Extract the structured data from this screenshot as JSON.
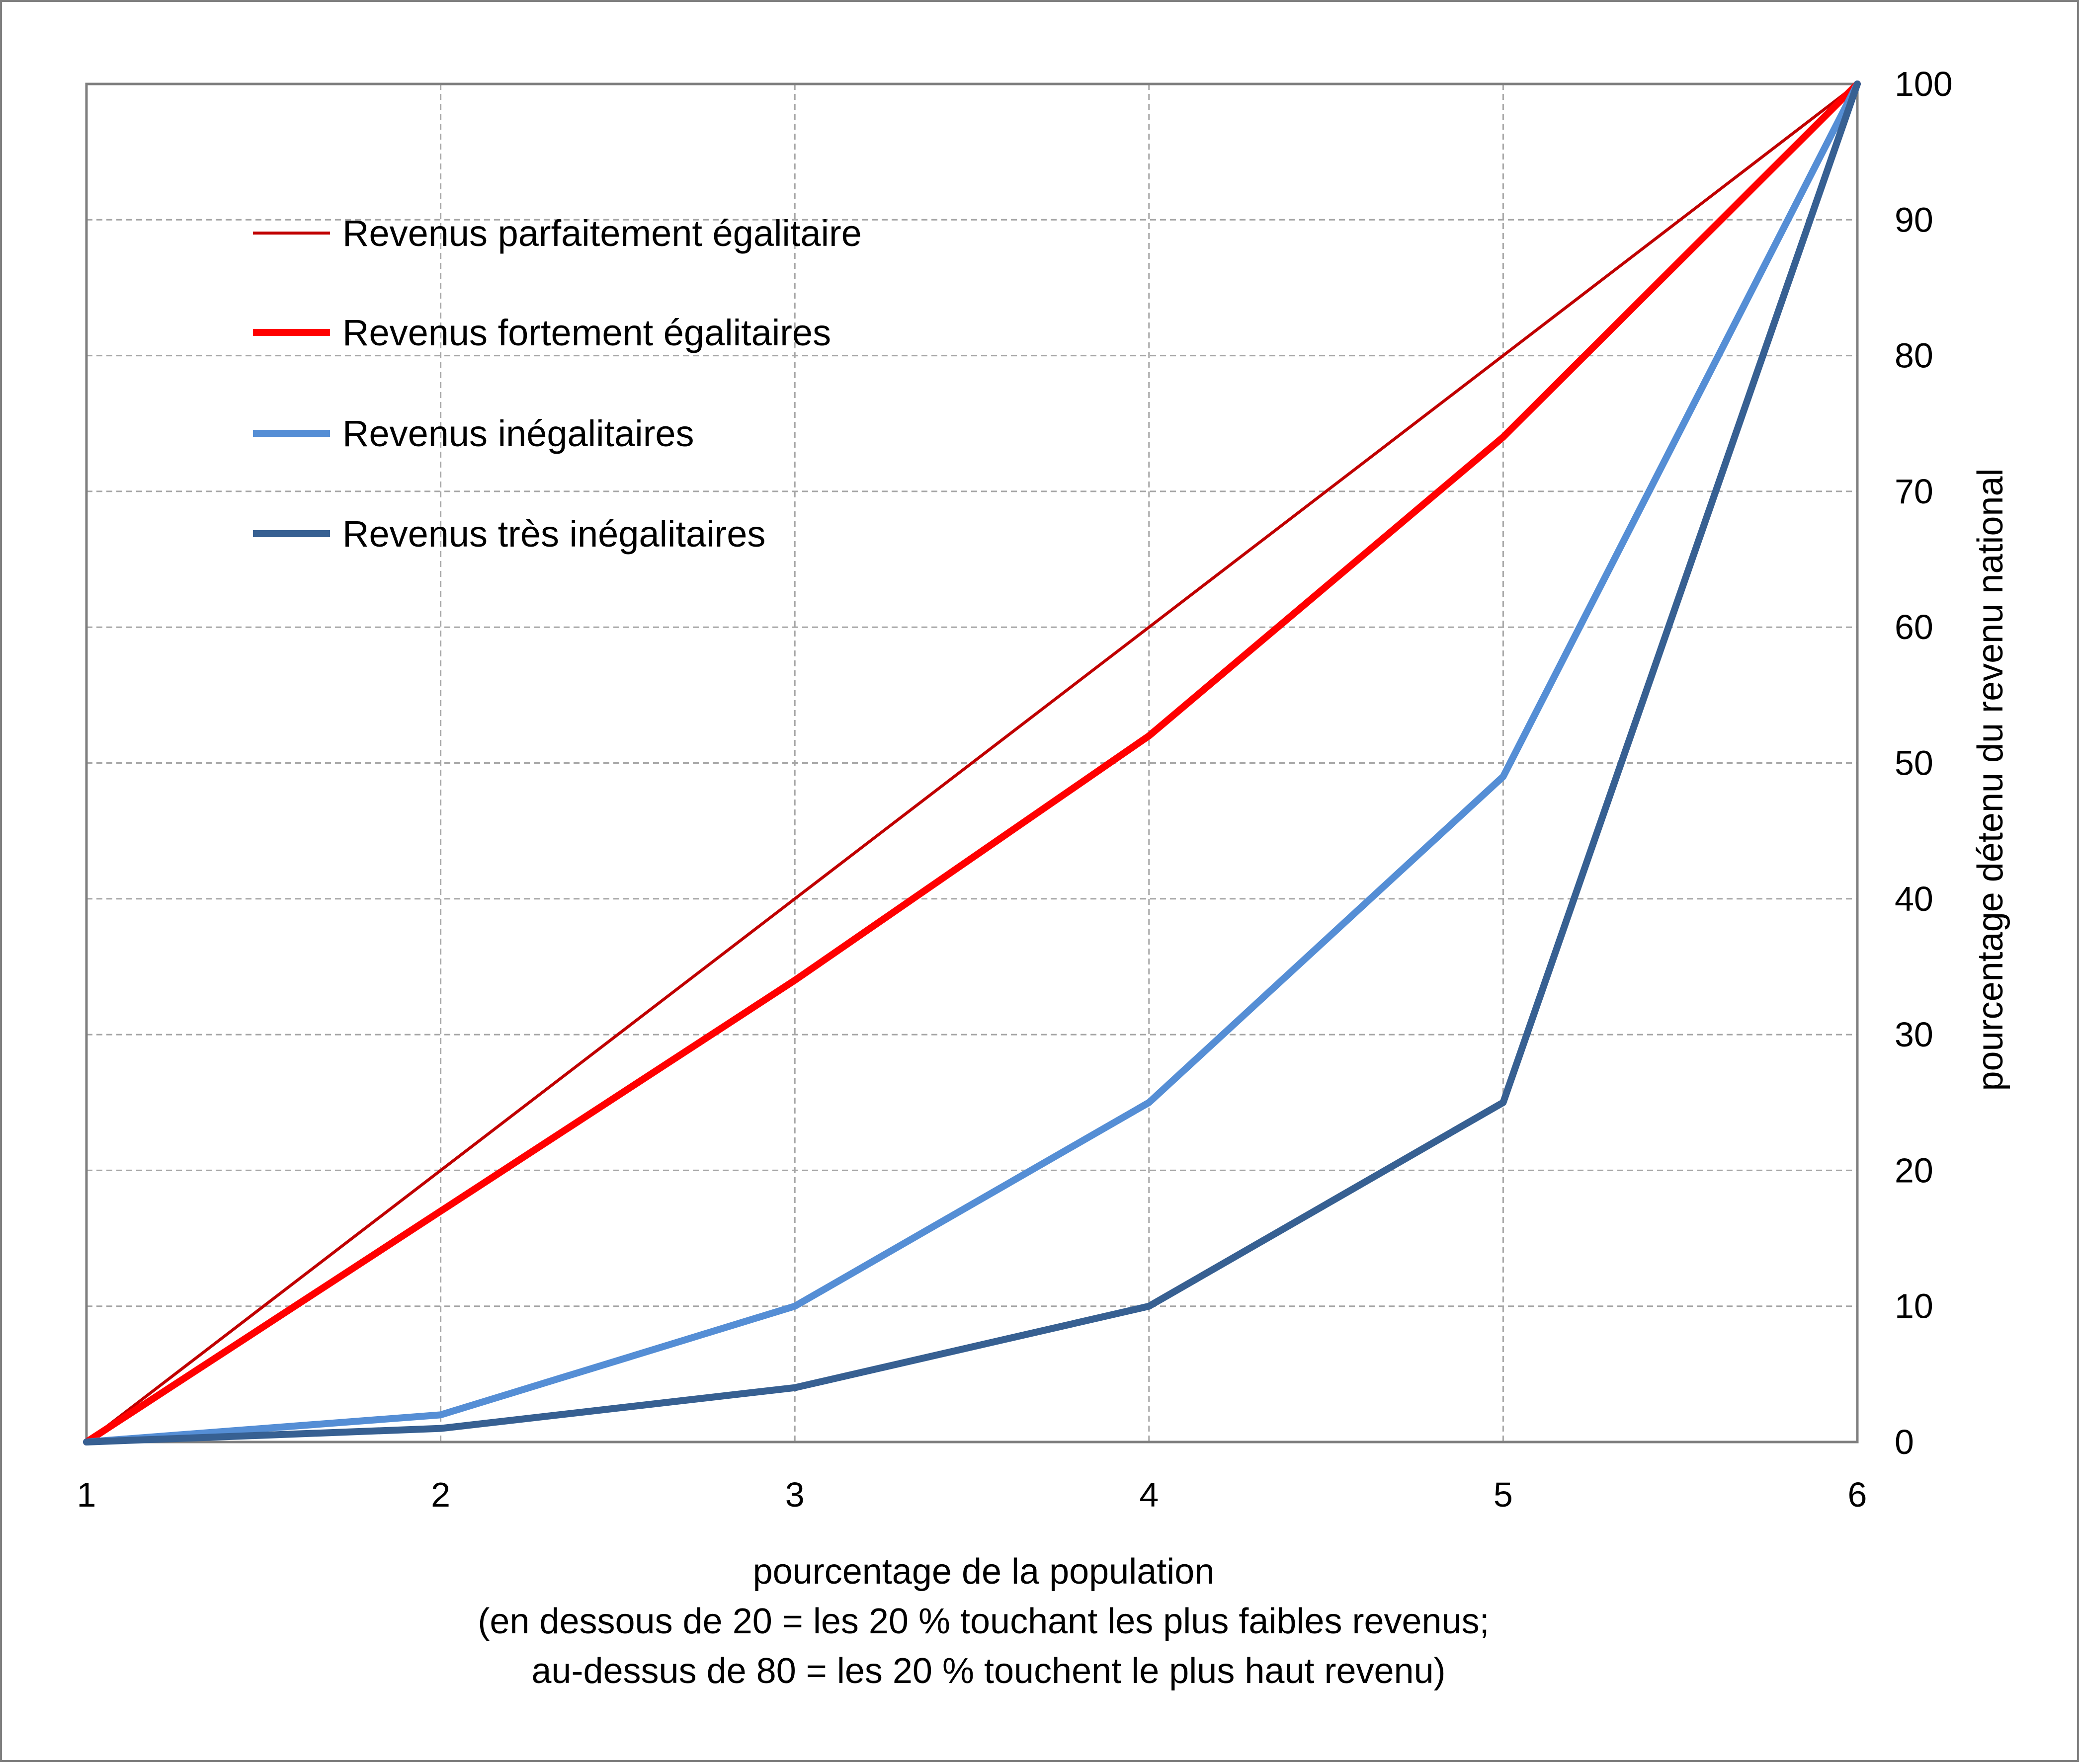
{
  "chart_data": {
    "type": "line",
    "x": [
      1,
      2,
      3,
      4,
      5,
      6
    ],
    "xlim": [
      1,
      6
    ],
    "ylim": [
      0,
      100
    ],
    "y_axis_side": "right",
    "grid": true,
    "legend_placement": "top-left",
    "xticks": [
      "1",
      "2",
      "3",
      "4",
      "5",
      "6"
    ],
    "yticks": [
      "0",
      "10",
      "20",
      "30",
      "40",
      "50",
      "60",
      "70",
      "80",
      "90",
      "100"
    ],
    "xlabel_lines": [
      "pourcentage de la population",
      "(en dessous de 20 = les 20 % touchant les plus faibles revenus;",
      "au-dessus de 80 = les 20 % touchent le plus haut revenu)"
    ],
    "ylabel": "pourcentage détenu du revenu national",
    "series": [
      {
        "name": "Revenus parfaitement égalitaire",
        "color": "#c00000",
        "values": [
          0,
          20,
          40,
          60,
          80,
          100
        ]
      },
      {
        "name": "Revenus fortement égalitaires",
        "color": "#ff0000",
        "values": [
          0,
          17,
          34,
          52,
          74,
          100
        ]
      },
      {
        "name": "Revenus inégalitaires",
        "color": "#558ed5",
        "values": [
          0,
          2,
          10,
          25,
          49,
          100
        ]
      },
      {
        "name": "Revenus très inégalitaires",
        "color": "#376092",
        "values": [
          0,
          1,
          4,
          10,
          25,
          100
        ]
      }
    ]
  }
}
